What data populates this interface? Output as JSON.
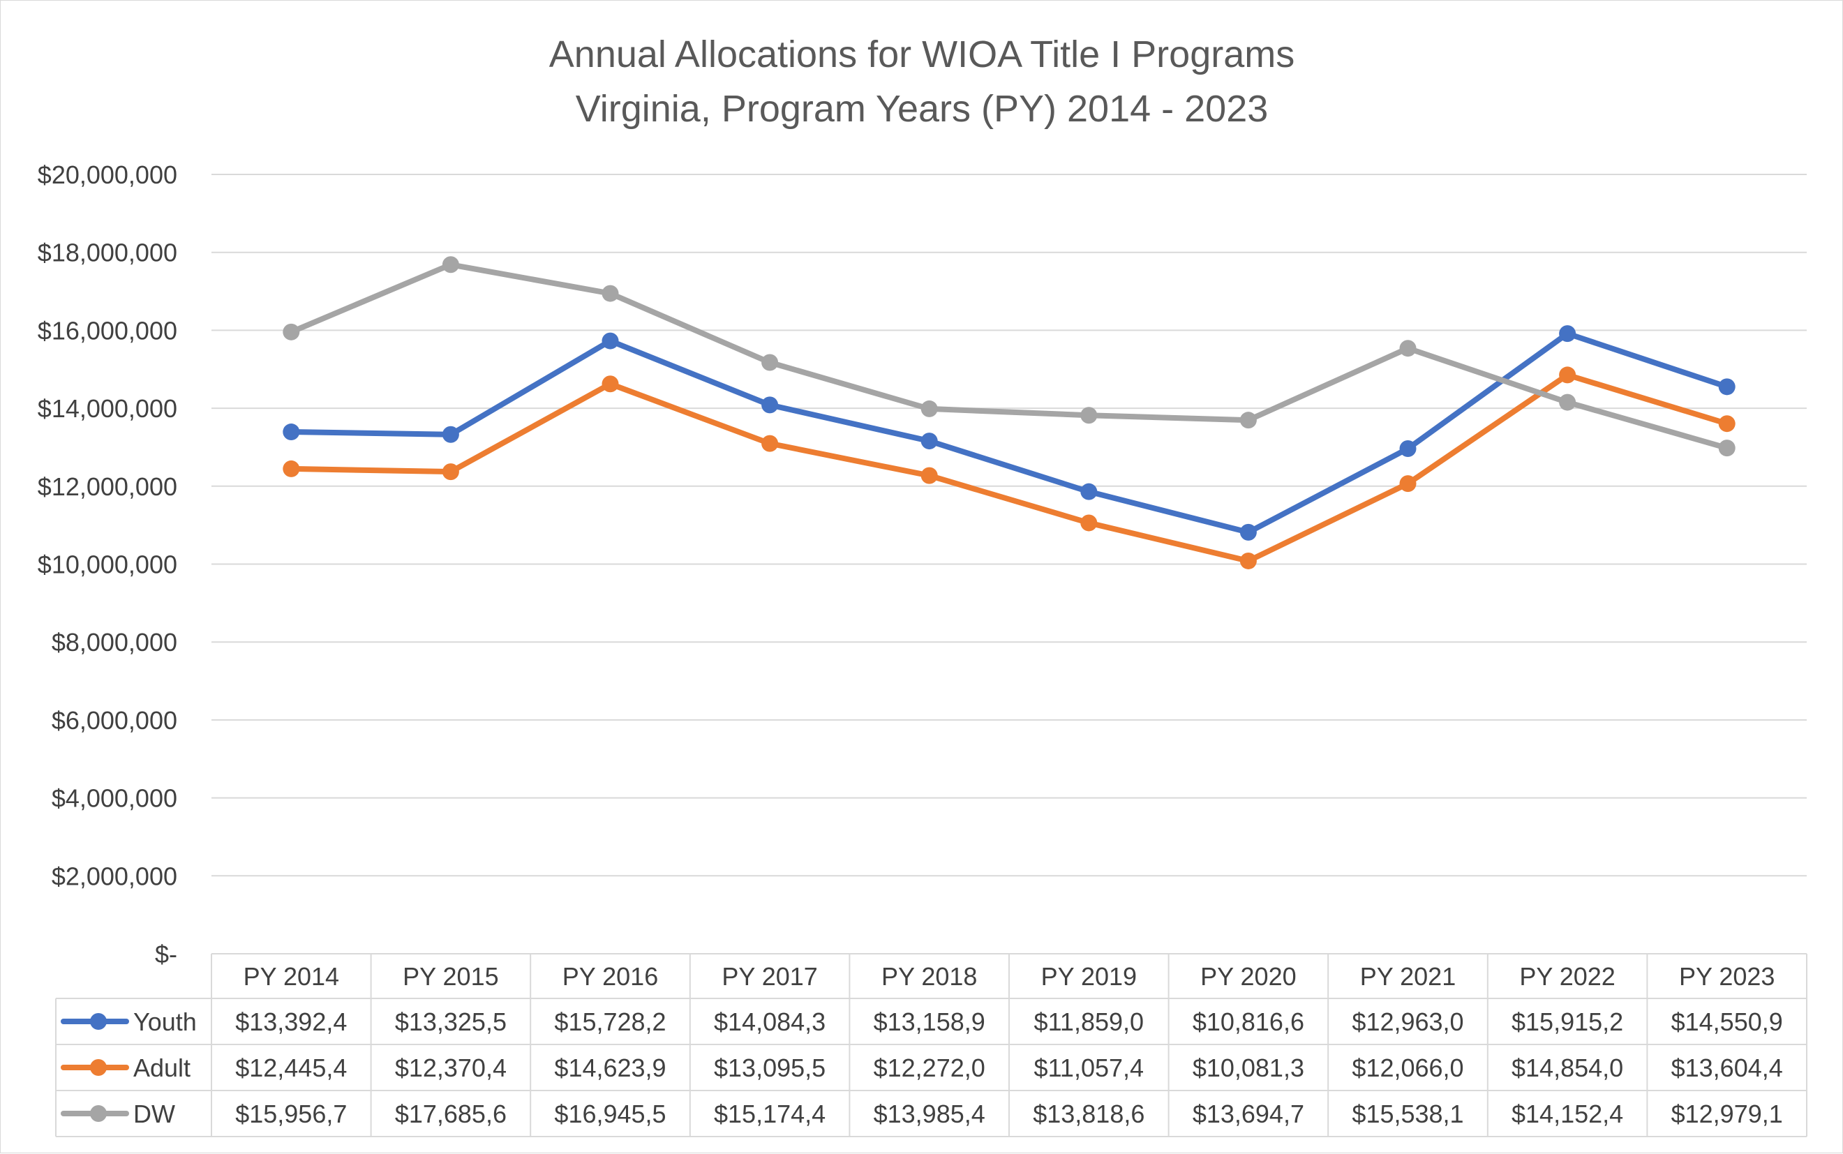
{
  "chart_data": {
    "type": "line",
    "title": "Annual Allocations for WIOA Title I Programs",
    "subtitle": "Virginia, Program Years (PY) 2014 - 2023",
    "categories": [
      "PY 2014",
      "PY 2015",
      "PY 2016",
      "PY 2017",
      "PY 2018",
      "PY 2019",
      "PY 2020",
      "PY 2021",
      "PY 2022",
      "PY 2023"
    ],
    "ylim": [
      0,
      20000000
    ],
    "y_ticks": [
      {
        "value": 0,
        "label": "$-"
      },
      {
        "value": 2000000,
        "label": "$2,000,000"
      },
      {
        "value": 4000000,
        "label": "$4,000,000"
      },
      {
        "value": 6000000,
        "label": "$6,000,000"
      },
      {
        "value": 8000000,
        "label": "$8,000,000"
      },
      {
        "value": 10000000,
        "label": "$10,000,000"
      },
      {
        "value": 12000000,
        "label": "$12,000,000"
      },
      {
        "value": 14000000,
        "label": "$14,000,000"
      },
      {
        "value": 16000000,
        "label": "$16,000,000"
      },
      {
        "value": 18000000,
        "label": "$18,000,000"
      },
      {
        "value": 20000000,
        "label": "$20,000,000"
      }
    ],
    "grid": true,
    "legend": "data-table",
    "series": [
      {
        "name": "Youth",
        "color": "#4472c4",
        "values": [
          13392400,
          13325500,
          15728200,
          14084300,
          13158900,
          11859000,
          10816600,
          12963000,
          15915200,
          14550900
        ],
        "table_labels": [
          "$13,392,4",
          "$13,325,5",
          "$15,728,2",
          "$14,084,3",
          "$13,158,9",
          "$11,859,0",
          "$10,816,6",
          "$12,963,0",
          "$15,915,2",
          "$14,550,9"
        ]
      },
      {
        "name": "Adult",
        "color": "#ed7d31",
        "values": [
          12445400,
          12370400,
          14623900,
          13095500,
          12272000,
          11057400,
          10081300,
          12066000,
          14854000,
          13604400
        ],
        "table_labels": [
          "$12,445,4",
          "$12,370,4",
          "$14,623,9",
          "$13,095,5",
          "$12,272,0",
          "$11,057,4",
          "$10,081,3",
          "$12,066,0",
          "$14,854,0",
          "$13,604,4"
        ]
      },
      {
        "name": "DW",
        "color": "#a5a5a5",
        "values": [
          15956700,
          17685600,
          16945500,
          15174400,
          13985400,
          13818600,
          13694700,
          15538100,
          14152400,
          12979100
        ],
        "table_labels": [
          "$15,956,7",
          "$17,685,6",
          "$16,945,5",
          "$15,174,4",
          "$13,985,4",
          "$13,818,6",
          "$13,694,7",
          "$15,538,1",
          "$14,152,4",
          "$12,979,1"
        ]
      }
    ]
  }
}
